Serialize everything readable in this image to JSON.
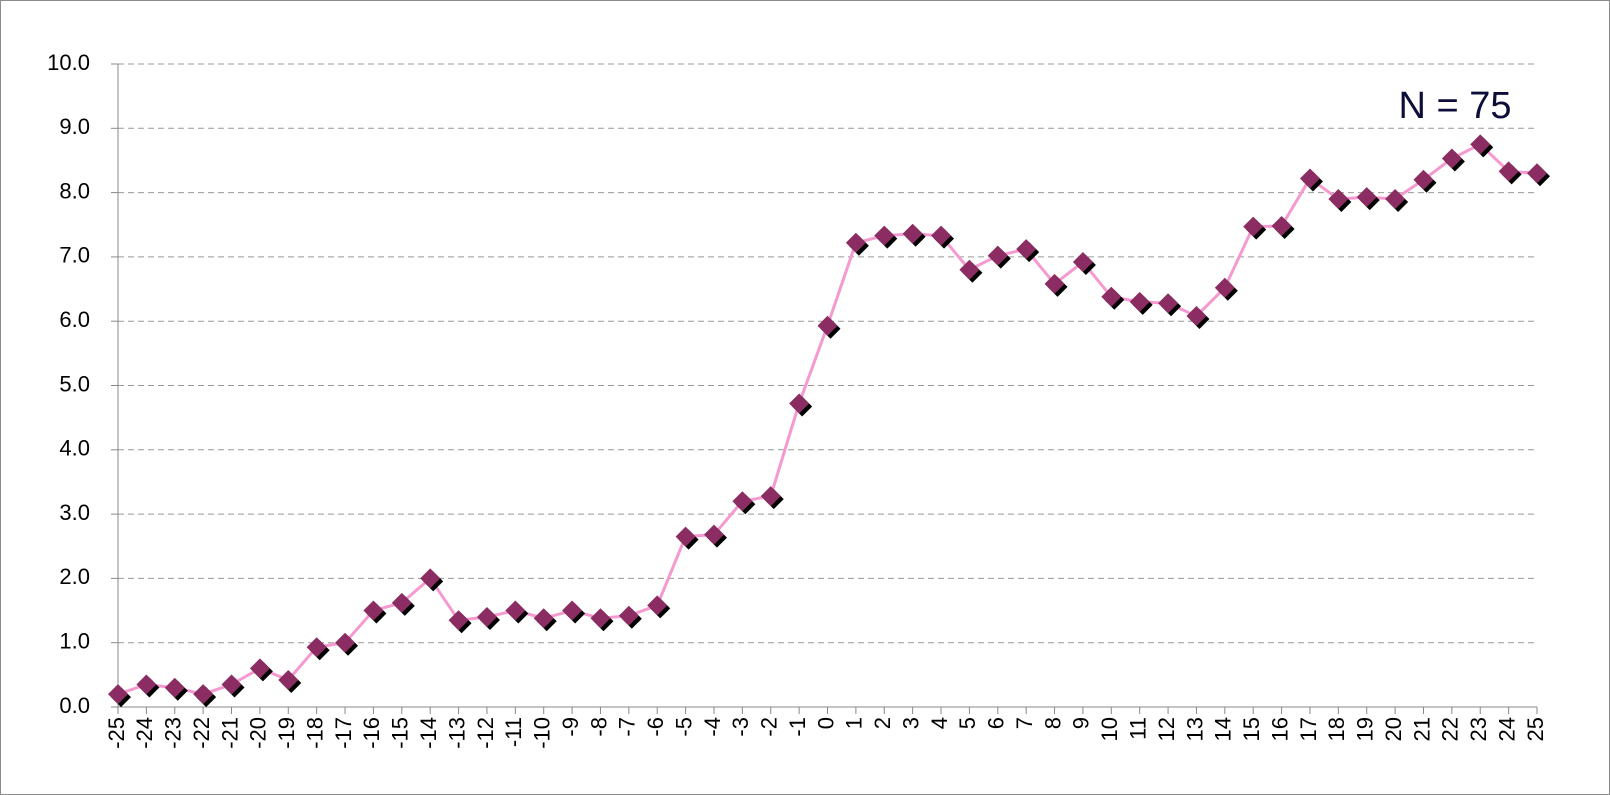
{
  "chart_data": {
    "type": "line",
    "annotation": "N = 75",
    "categories": [
      "-25",
      "-24",
      "-23",
      "-22",
      "-21",
      "-20",
      "-19",
      "-18",
      "-17",
      "-16",
      "-15",
      "-14",
      "-13",
      "-12",
      "-11",
      "-10",
      "-9",
      "-8",
      "-7",
      "-6",
      "-5",
      "-4",
      "-3",
      "-2",
      "-1",
      "0",
      "1",
      "2",
      "3",
      "4",
      "5",
      "6",
      "7",
      "8",
      "9",
      "10",
      "11",
      "12",
      "13",
      "14",
      "15",
      "16",
      "17",
      "18",
      "19",
      "20",
      "21",
      "22",
      "23",
      "24",
      "25"
    ],
    "series": [
      {
        "line_color": "#f59ad0",
        "color": "#8b2d62",
        "values": [
          0.2,
          0.35,
          0.3,
          0.2,
          0.35,
          0.6,
          0.42,
          0.93,
          1.0,
          1.5,
          1.62,
          2.0,
          1.35,
          1.4,
          1.5,
          1.38,
          1.5,
          1.38,
          1.42,
          1.58,
          2.65,
          2.68,
          3.2,
          3.28,
          4.72,
          5.93,
          7.22,
          7.33,
          7.36,
          7.33,
          6.8,
          7.02,
          7.12,
          6.58,
          6.92,
          6.38,
          6.3,
          6.28,
          6.08,
          6.52,
          7.47,
          7.48,
          8.22,
          7.9,
          7.93,
          7.9,
          8.2,
          8.53,
          8.75,
          8.33,
          8.3
        ]
      }
    ],
    "ylim": [
      0,
      10
    ],
    "yticks": [
      {
        "value": 0,
        "label": "0.0"
      },
      {
        "value": 1,
        "label": "1.0"
      },
      {
        "value": 2,
        "label": "2.0"
      },
      {
        "value": 3,
        "label": "3.0"
      },
      {
        "value": 4,
        "label": "4.0"
      },
      {
        "value": 5,
        "label": "5.0"
      },
      {
        "value": 6,
        "label": "6.0"
      },
      {
        "value": 7,
        "label": "7.0"
      },
      {
        "value": 8,
        "label": "8.0"
      },
      {
        "value": 9,
        "label": "9.0"
      },
      {
        "value": 10,
        "label": "10.0"
      }
    ],
    "grid": true
  }
}
